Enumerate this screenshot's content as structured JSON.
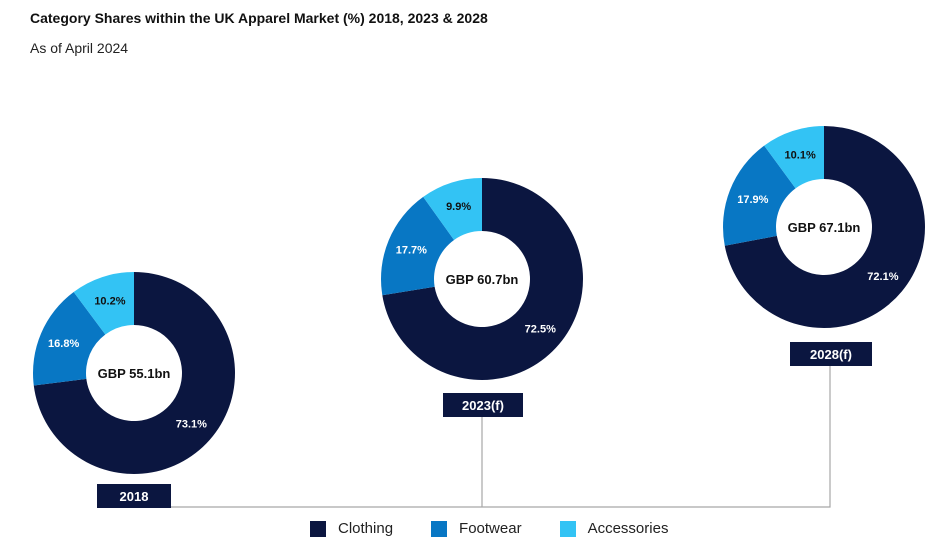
{
  "header": {
    "title": "Category Shares within the UK Apparel Market (%) 2018, 2023 & 2028",
    "subtitle": "As of April 2024"
  },
  "colors": {
    "Clothing": "#0b1640",
    "Footwear": "#0877c4",
    "Accessories": "#33c3f4",
    "year_badge": "#0b1640",
    "connector": "#a6a6a6"
  },
  "chart_data": {
    "type": "pie",
    "variant": "donut",
    "title": "Category Shares within the UK Apparel Market (%) 2018, 2023 & 2028",
    "subtitle": "As of April 2024",
    "legend": [
      "Clothing",
      "Footwear",
      "Accessories"
    ],
    "legend_position": "bottom",
    "charts": [
      {
        "year": "2018",
        "total_label": "GBP 55.1bn",
        "slices": [
          {
            "name": "Clothing",
            "value": 73.1,
            "label": "73.1%"
          },
          {
            "name": "Footwear",
            "value": 16.8,
            "label": "16.8%"
          },
          {
            "name": "Accessories",
            "value": 10.2,
            "label": "10.2%"
          }
        ]
      },
      {
        "year": "2023(f)",
        "total_label": "GBP 60.7bn",
        "slices": [
          {
            "name": "Clothing",
            "value": 72.5,
            "label": "72.5%"
          },
          {
            "name": "Footwear",
            "value": 17.7,
            "label": "17.7%"
          },
          {
            "name": "Accessories",
            "value": 9.9,
            "label": "9.9%"
          }
        ]
      },
      {
        "year": "2028(f)",
        "total_label": "GBP 67.1bn",
        "slices": [
          {
            "name": "Clothing",
            "value": 72.1,
            "label": "72.1%"
          },
          {
            "name": "Footwear",
            "value": 17.9,
            "label": "17.9%"
          },
          {
            "name": "Accessories",
            "value": 10.1,
            "label": "10.1%"
          }
        ]
      }
    ]
  }
}
